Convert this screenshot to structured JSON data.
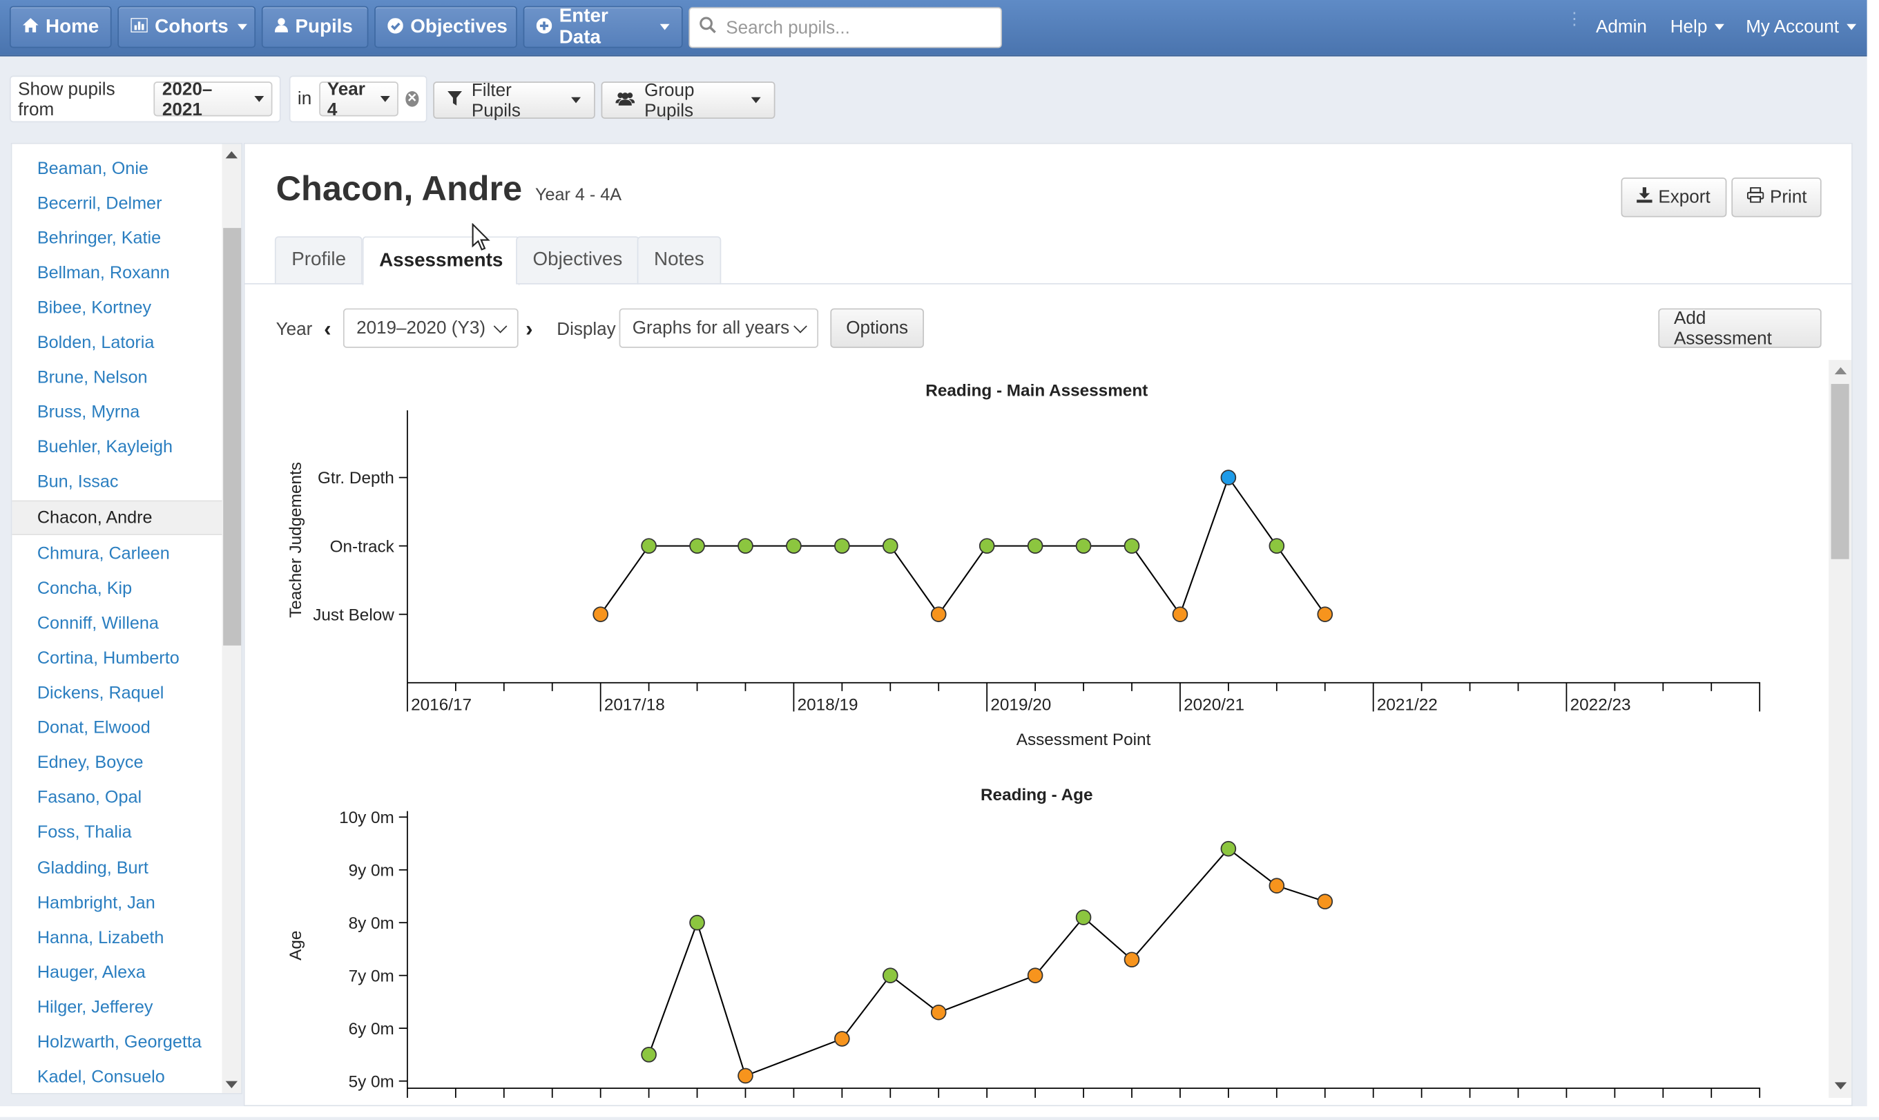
{
  "navbar": {
    "home": "Home",
    "cohorts": "Cohorts",
    "pupils": "Pupils",
    "objectives": "Objectives",
    "enter_data": "Enter Data",
    "search_placeholder": "Search pupils...",
    "admin": "Admin",
    "help": "Help",
    "my_account": "My Account"
  },
  "filter": {
    "show_from_label": "Show pupils from",
    "year_value": "2020–2021",
    "in_label": "in",
    "group_value": "Year 4",
    "filter_pupils": "Filter Pupils",
    "group_pupils": "Group Pupils"
  },
  "sidebar": {
    "pupils": [
      "Beaman, Onie",
      "Becerril, Delmer",
      "Behringer, Katie",
      "Bellman, Roxann",
      "Bibee, Kortney",
      "Bolden, Latoria",
      "Brune, Nelson",
      "Bruss, Myrna",
      "Buehler, Kayleigh",
      "Bun, Issac",
      "Chacon, Andre",
      "Chmura, Carleen",
      "Concha, Kip",
      "Conniff, Willena",
      "Cortina, Humberto",
      "Dickens, Raquel",
      "Donat, Elwood",
      "Edney, Boyce",
      "Fasano, Opal",
      "Foss, Thalia",
      "Gladding, Burt",
      "Hambright, Jan",
      "Hanna, Lizabeth",
      "Hauger, Alexa",
      "Hilger, Jefferey",
      "Holzwarth, Georgetta",
      "Kadel, Consuelo"
    ],
    "active_index": 10
  },
  "pupil": {
    "name": "Chacon, Andre",
    "class": "Year 4 - 4A"
  },
  "actions": {
    "export": "Export",
    "print": "Print"
  },
  "tabs": [
    "Profile",
    "Assessments",
    "Objectives",
    "Notes"
  ],
  "active_tab": 1,
  "controls": {
    "year_label": "Year",
    "year_value": "2019–2020 (Y3)",
    "display_label": "Display",
    "display_value": "Graphs for all years",
    "options": "Options",
    "add_assessment": "Add Assessment"
  },
  "colors": {
    "nav": "#4f7ab5",
    "link": "#2a7ec0",
    "green": "#8cc63f",
    "orange": "#f7941d",
    "blue": "#1e9be8"
  },
  "chart_data": [
    {
      "type": "line",
      "title": "Reading - Main Assessment",
      "xlabel": "Assessment Point",
      "ylabel": "Teacher Judgements",
      "x_ticks": [
        "2016/17",
        "2017/18",
        "2018/19",
        "2019/20",
        "2020/21",
        "2021/22",
        "2022/23"
      ],
      "y_ticks": [
        "Just Below",
        "On-track",
        "Gtr. Depth"
      ],
      "points": [
        {
          "x": 4,
          "y": 1,
          "status": "orange"
        },
        {
          "x": 5,
          "y": 2,
          "status": "green"
        },
        {
          "x": 6,
          "y": 2,
          "status": "green"
        },
        {
          "x": 7,
          "y": 2,
          "status": "green"
        },
        {
          "x": 8,
          "y": 2,
          "status": "green"
        },
        {
          "x": 9,
          "y": 2,
          "status": "green"
        },
        {
          "x": 10,
          "y": 2,
          "status": "green"
        },
        {
          "x": 11,
          "y": 1,
          "status": "orange"
        },
        {
          "x": 12,
          "y": 2,
          "status": "green"
        },
        {
          "x": 13,
          "y": 2,
          "status": "green"
        },
        {
          "x": 14,
          "y": 2,
          "status": "green"
        },
        {
          "x": 15,
          "y": 2,
          "status": "green"
        },
        {
          "x": 16,
          "y": 1,
          "status": "orange"
        },
        {
          "x": 17,
          "y": 3,
          "status": "blue"
        },
        {
          "x": 18,
          "y": 2,
          "status": "green"
        },
        {
          "x": 19,
          "y": 1,
          "status": "orange"
        }
      ]
    },
    {
      "type": "line",
      "title": "Reading - Age",
      "ylabel": "Age",
      "y_ticks": [
        "5y 0m",
        "6y 0m",
        "7y 0m",
        "8y 0m",
        "9y 0m",
        "10y 0m"
      ],
      "ylim": [
        5,
        10
      ],
      "points": [
        {
          "x": 5,
          "y": 5.5,
          "status": "green"
        },
        {
          "x": 6,
          "y": 8.0,
          "status": "green"
        },
        {
          "x": 7,
          "y": 5.1,
          "status": "orange"
        },
        {
          "x": 9,
          "y": 5.8,
          "status": "orange"
        },
        {
          "x": 10,
          "y": 7.0,
          "status": "green"
        },
        {
          "x": 11,
          "y": 6.3,
          "status": "orange"
        },
        {
          "x": 13,
          "y": 7.0,
          "status": "orange"
        },
        {
          "x": 14,
          "y": 8.1,
          "status": "green"
        },
        {
          "x": 15,
          "y": 7.3,
          "status": "orange"
        },
        {
          "x": 17,
          "y": 9.4,
          "status": "green"
        },
        {
          "x": 18,
          "y": 8.7,
          "status": "orange"
        },
        {
          "x": 19,
          "y": 8.4,
          "status": "orange"
        }
      ]
    }
  ]
}
